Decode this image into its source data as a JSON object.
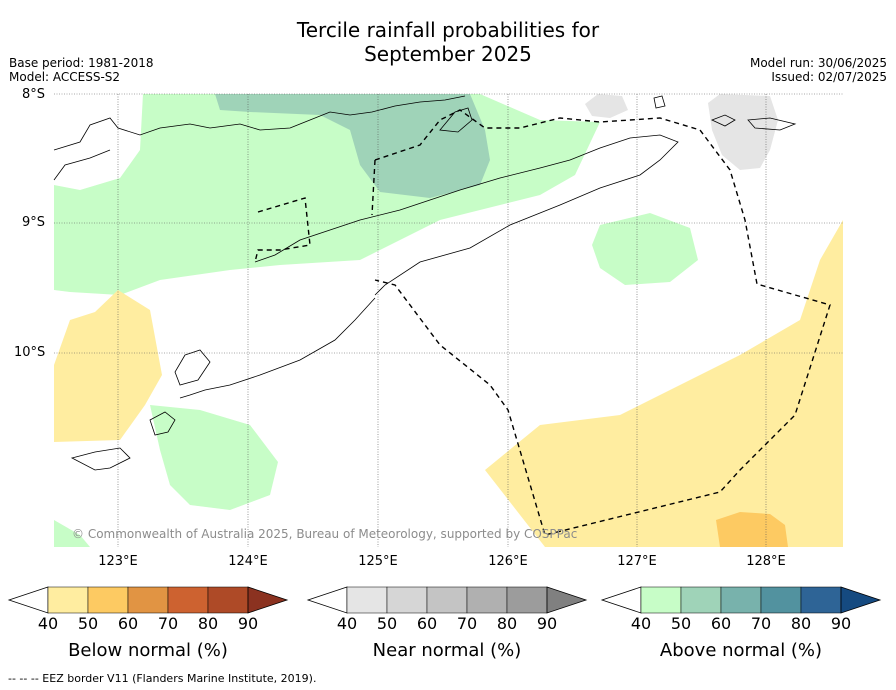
{
  "title_line1": "Tercile rainfall probabilities for",
  "title_line2": "September 2025",
  "base_period": "Base period: 1981-2018",
  "model": "Model: ACCESS-S2",
  "model_run": "Model run: 30/06/2025",
  "issued": "Issued: 02/07/2025",
  "copyright": "© Commonwealth of Australia 2025, Bureau of Meteorology, supported by COSPPac",
  "lat_labels": [
    "8°S",
    "9°S",
    "10°S"
  ],
  "lon_labels": [
    "123°E",
    "124°E",
    "125°E",
    "126°E",
    "127°E",
    "128°E"
  ],
  "colorbars": [
    {
      "label": "Below normal (%)",
      "ticks": [
        "40",
        "50",
        "60",
        "70",
        "80",
        "90"
      ],
      "colors": [
        "#ffeda0",
        "#fdca62",
        "#e19443",
        "#cd6230",
        "#ae4a27",
        "#8b3220"
      ]
    },
    {
      "label": "Near normal (%)",
      "ticks": [
        "40",
        "50",
        "60",
        "70",
        "80",
        "90"
      ],
      "colors": [
        "#e5e5e5",
        "#d6d6d6",
        "#c4c4c4",
        "#b0b0b0",
        "#9c9c9c",
        "#808080"
      ]
    },
    {
      "label": "Above normal (%)",
      "ticks": [
        "40",
        "50",
        "60",
        "70",
        "80",
        "90"
      ],
      "colors": [
        "#c7fdc7",
        "#9fd3b8",
        "#78b2ac",
        "#52929f",
        "#2e6496",
        "#154a80"
      ]
    }
  ],
  "legend_note": "-- -- -- EEZ border V11 (Flanders Marine Institute, 2019)."
}
